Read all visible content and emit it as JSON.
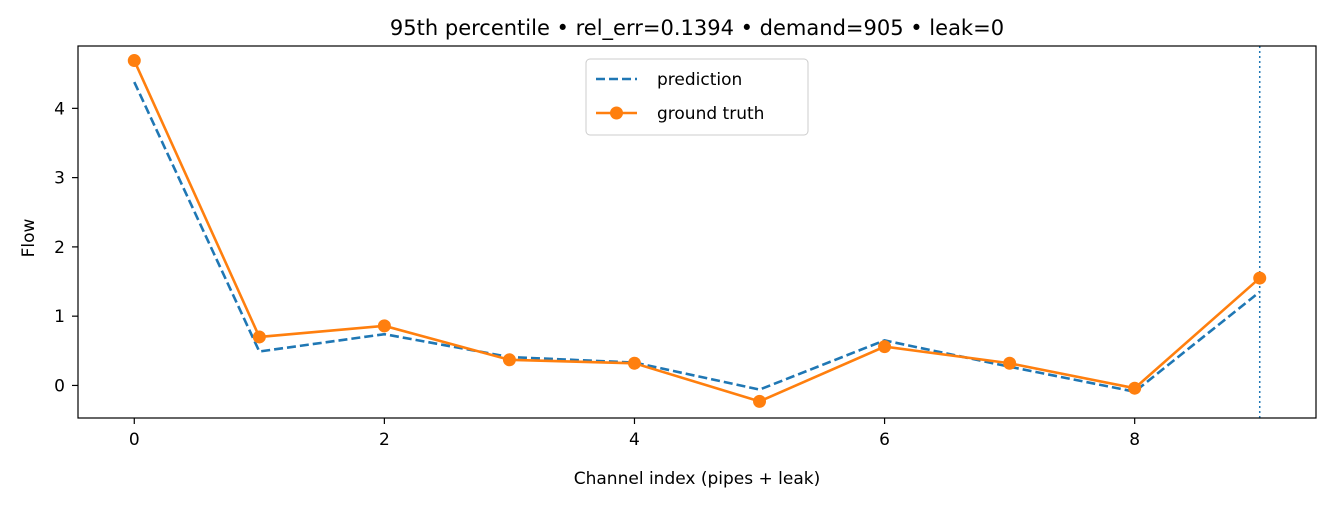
{
  "chart_data": {
    "type": "line",
    "title": "95th percentile • rel_err=0.1394 • demand=905 • leak=0",
    "xlabel": "Channel index (pipes + leak)",
    "ylabel": "Flow",
    "x": [
      0,
      1,
      2,
      3,
      4,
      5,
      6,
      7,
      8,
      9
    ],
    "xlim": [
      -0.45,
      9.45
    ],
    "ylim": [
      -0.47,
      4.9
    ],
    "xticks": [
      0,
      2,
      4,
      6,
      8
    ],
    "yticks": [
      0,
      1,
      2,
      3,
      4
    ],
    "legend_position": "top-center",
    "grid": false,
    "vline_x": 9,
    "series": [
      {
        "name": "prediction",
        "style": "dashed",
        "color": "#1f77b4",
        "values": [
          4.38,
          0.49,
          0.74,
          0.41,
          0.33,
          -0.06,
          0.65,
          0.27,
          -0.09,
          1.35
        ]
      },
      {
        "name": "ground truth",
        "style": "solid-markers",
        "color": "#ff7f0e",
        "values": [
          4.69,
          0.7,
          0.86,
          0.37,
          0.32,
          -0.23,
          0.56,
          0.32,
          -0.04,
          1.55
        ]
      }
    ]
  }
}
